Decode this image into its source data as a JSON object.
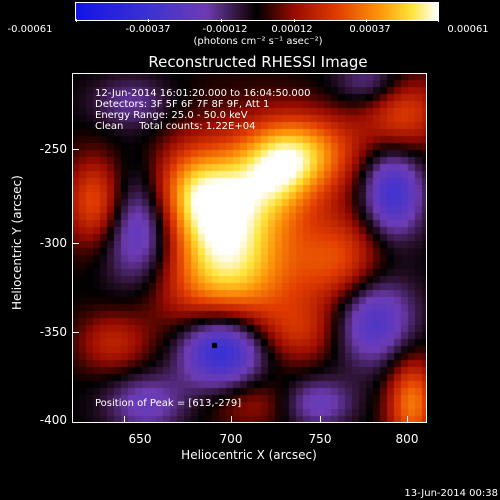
{
  "colorbar": {
    "ticks": [
      "-0.00061",
      "-0.00037",
      "-0.00012",
      "0.00012",
      "0.00037",
      "0.00061"
    ],
    "units": "(photons cm⁻² s⁻¹ asec⁻²)"
  },
  "title": "Reconstructed RHESSI Image",
  "annotations": {
    "time_range": "12-Jun-2014 16:01:20.000 to 16:04:50.000",
    "detectors": "Detectors: 3F 5F 6F 7F 8F 9F, Att 1",
    "energy": "Energy Range: 25.0 - 50.0 keV",
    "method": "Clean     Total counts: 1.22E+04",
    "peak": "Position of Peak = [613,-279]"
  },
  "axes": {
    "xlabel": "Heliocentric X (arcsec)",
    "ylabel": "Heliocentric Y (arcsec)",
    "xticks": [
      "650",
      "700",
      "750",
      "800"
    ],
    "yticks": [
      "-250",
      "-300",
      "-350",
      "-400"
    ]
  },
  "footer": "13-Jun-2014 00:38"
}
